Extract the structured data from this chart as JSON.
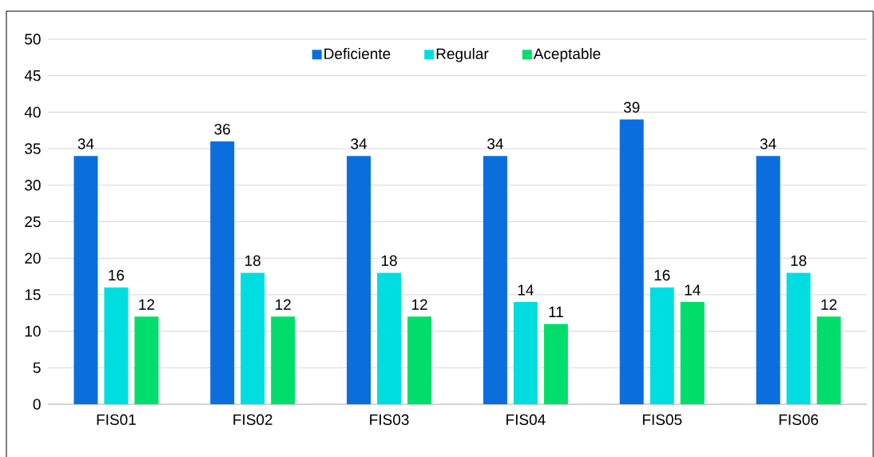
{
  "chart_data": {
    "type": "bar",
    "categories": [
      "FIS01",
      "FIS02",
      "FIS03",
      "FIS04",
      "FIS05",
      "FIS06"
    ],
    "series": [
      {
        "name": "Deficiente",
        "color": "#0a6fdc",
        "values": [
          34,
          36,
          34,
          34,
          39,
          34
        ]
      },
      {
        "name": "Regular",
        "color": "#00dde0",
        "values": [
          16,
          18,
          18,
          14,
          16,
          18
        ]
      },
      {
        "name": "Aceptable",
        "color": "#00dd6a",
        "values": [
          12,
          12,
          12,
          11,
          14,
          12
        ]
      }
    ],
    "ylim": [
      0,
      50
    ],
    "yticks": [
      0,
      5,
      10,
      15,
      20,
      25,
      30,
      35,
      40,
      45,
      50
    ],
    "grid": "y",
    "legend": "top",
    "data_labels": true
  }
}
